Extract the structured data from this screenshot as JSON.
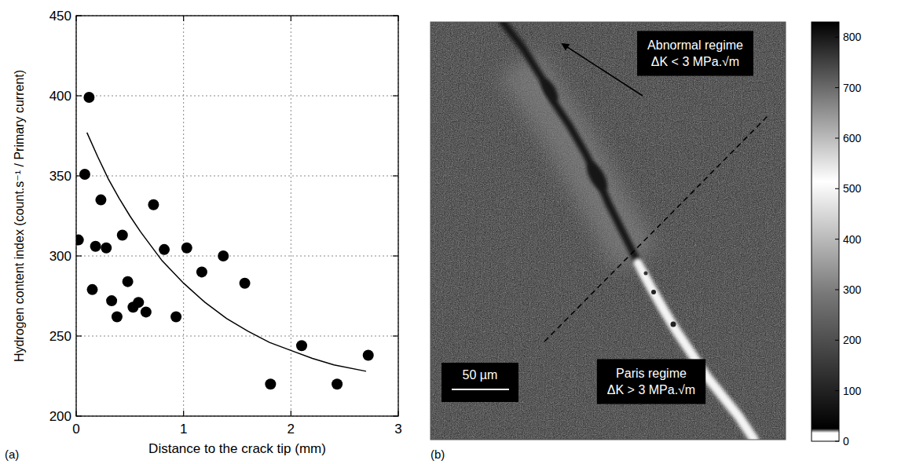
{
  "chart_data": [
    {
      "type": "scatter",
      "label": "(a)",
      "x_label": "Distance to the crack tip (mm)",
      "y_label": "Hydrogen content index (count.s⁻¹ / Primary current)",
      "xlim": [
        0,
        3
      ],
      "xticks": [
        0,
        1,
        2,
        3
      ],
      "ylim": [
        200,
        450
      ],
      "yticks": [
        200,
        250,
        300,
        350,
        400,
        450
      ],
      "grid": true,
      "series": [
        {
          "type": "scatter",
          "marker": "circle",
          "color": "#000000",
          "x": [
            0.02,
            0.12,
            0.08,
            0.18,
            0.15,
            0.23,
            0.28,
            0.33,
            0.38,
            0.43,
            0.48,
            0.53,
            0.58,
            0.65,
            0.72,
            0.82,
            0.93,
            1.03,
            1.17,
            1.37,
            1.57,
            1.81,
            2.1,
            2.43,
            2.72
          ],
          "values": [
            310,
            399,
            351,
            306,
            279,
            335,
            305,
            272,
            262,
            313,
            284,
            268,
            271,
            265,
            332,
            304,
            262,
            305,
            290,
            300,
            283,
            220,
            244,
            220,
            238
          ]
        },
        {
          "type": "line",
          "line_style": "solid",
          "color": "#000000",
          "x": [
            0.1,
            0.2,
            0.3,
            0.4,
            0.5,
            0.6,
            0.8,
            1.0,
            1.2,
            1.4,
            1.6,
            1.8,
            2.0,
            2.2,
            2.4,
            2.7
          ],
          "values": [
            377,
            362,
            348,
            336,
            325,
            315,
            297,
            283,
            271,
            261,
            253,
            246,
            241,
            236,
            232,
            228
          ]
        }
      ]
    },
    {
      "type": "image",
      "label": "(b)",
      "annotations": [
        [
          "Abnormal regime",
          "ΔK < 3 MPa.√m"
        ],
        [
          "Paris regime",
          "ΔK > 3 MPa.√m"
        ]
      ],
      "scale_bar": "50 µm",
      "colorbar_range": [
        0,
        830
      ],
      "colorbar_ticks": [
        0,
        100,
        200,
        300,
        400,
        500,
        600,
        700,
        800
      ]
    }
  ]
}
